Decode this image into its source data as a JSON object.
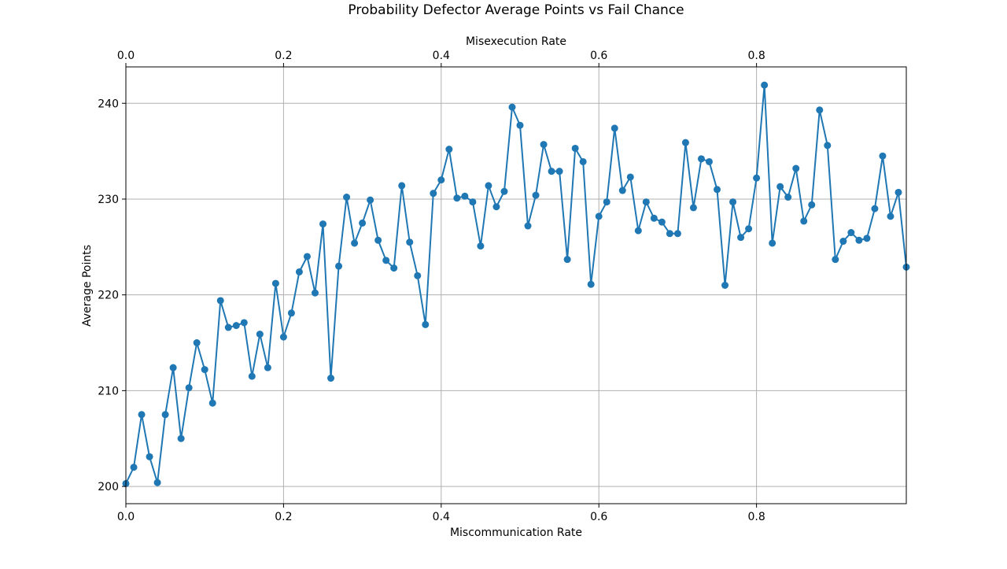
{
  "chart_data": {
    "type": "line",
    "title": "Probability Defector Average Points vs Fail Chance",
    "xlabel": "Miscommunication Rate",
    "xlabel_top": "Misexecution Rate",
    "ylabel": "Average Points",
    "xlim": [
      0,
      0.99
    ],
    "ylim": [
      198.2,
      243.8
    ],
    "x_ticks": [
      0.0,
      0.2,
      0.4,
      0.6,
      0.8
    ],
    "x_tick_labels": [
      "0.0",
      "0.2",
      "0.4",
      "0.6",
      "0.8"
    ],
    "x_top_ticks": [
      0.0,
      0.2,
      0.4,
      0.6,
      0.8
    ],
    "x_top_tick_labels": [
      "0.0",
      "0.2",
      "0.4",
      "0.6",
      "0.8"
    ],
    "y_ticks": [
      200,
      210,
      220,
      230,
      240
    ],
    "y_tick_labels": [
      "200",
      "210",
      "220",
      "230",
      "240"
    ],
    "grid": true,
    "color": "#1f77b4",
    "x": [
      0.0,
      0.01,
      0.02,
      0.03,
      0.04,
      0.05,
      0.06,
      0.07,
      0.08,
      0.09,
      0.1,
      0.11,
      0.12,
      0.13,
      0.14,
      0.15,
      0.16,
      0.17,
      0.18,
      0.19,
      0.2,
      0.21,
      0.22,
      0.23,
      0.24,
      0.25,
      0.26,
      0.27,
      0.28,
      0.29,
      0.3,
      0.31,
      0.32,
      0.33,
      0.34,
      0.35,
      0.36,
      0.37,
      0.38,
      0.39,
      0.4,
      0.41,
      0.42,
      0.43,
      0.44,
      0.45,
      0.46,
      0.47,
      0.48,
      0.49,
      0.5,
      0.51,
      0.52,
      0.53,
      0.54,
      0.55,
      0.56,
      0.57,
      0.58,
      0.59,
      0.6,
      0.61,
      0.62,
      0.63,
      0.64,
      0.65,
      0.66,
      0.67,
      0.68,
      0.69,
      0.7,
      0.71,
      0.72,
      0.73,
      0.74,
      0.75,
      0.76,
      0.77,
      0.78,
      0.79,
      0.8,
      0.81,
      0.82,
      0.83,
      0.84,
      0.85,
      0.86,
      0.87,
      0.88,
      0.89,
      0.9,
      0.91,
      0.92,
      0.93,
      0.94,
      0.95,
      0.96,
      0.97,
      0.98,
      0.99
    ],
    "y": [
      200.3,
      202.0,
      207.5,
      203.1,
      200.4,
      207.5,
      212.4,
      205.0,
      210.3,
      215.0,
      212.2,
      208.7,
      219.4,
      216.6,
      216.8,
      217.1,
      211.5,
      215.9,
      212.4,
      221.2,
      215.6,
      218.1,
      222.4,
      224.0,
      220.2,
      227.4,
      211.3,
      223.0,
      230.2,
      225.4,
      227.5,
      229.9,
      225.7,
      223.6,
      222.8,
      231.4,
      225.5,
      222.0,
      216.9,
      230.6,
      232.0,
      235.2,
      230.1,
      230.3,
      229.7,
      225.1,
      231.4,
      229.2,
      230.8,
      239.6,
      237.7,
      227.2,
      230.4,
      235.7,
      232.9,
      232.9,
      223.7,
      235.3,
      233.9,
      221.1,
      228.2,
      229.7,
      237.4,
      230.9,
      232.3,
      226.7,
      229.7,
      228.0,
      227.6,
      226.4,
      226.4,
      235.9,
      229.1,
      234.2,
      233.9,
      231.0,
      221.0,
      229.7,
      226.0,
      226.9,
      232.2,
      241.9,
      225.4,
      231.3,
      230.2,
      233.2,
      227.7,
      229.4,
      239.3,
      235.6,
      223.7,
      225.6,
      226.5,
      225.7,
      225.9,
      229.0,
      234.5,
      228.2,
      230.7,
      222.9
    ]
  }
}
